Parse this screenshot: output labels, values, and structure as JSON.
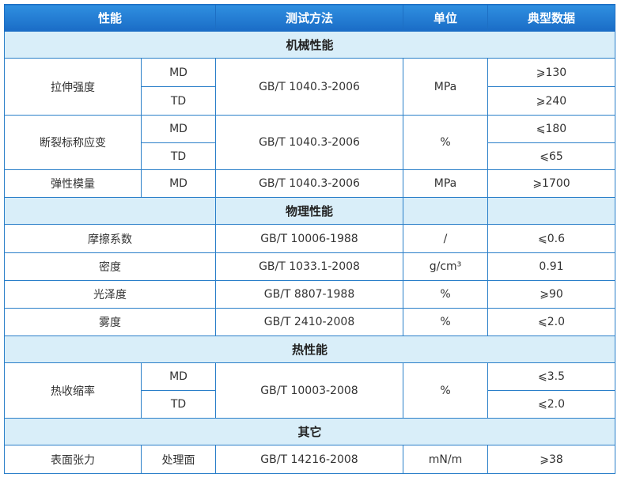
{
  "header": [
    "性能",
    "测试方法",
    "单位",
    "典型数据"
  ],
  "sections": {
    "mechanical": "机械性能",
    "physical": "物理性能",
    "thermal": "热性能",
    "other": "其它"
  },
  "rows": {
    "tensile": {
      "name": "拉伸强度",
      "dir1": "MD",
      "dir2": "TD",
      "method": "GB/T 1040.3-2006",
      "unit": "MPa",
      "v1": "⩾130",
      "v2": "⩾240"
    },
    "elongation": {
      "name": "断裂标称应变",
      "dir1": "MD",
      "dir2": "TD",
      "method": "GB/T 1040.3-2006",
      "unit": "%",
      "v1": "⩽180",
      "v2": "⩽65"
    },
    "modulus": {
      "name": "弹性模量",
      "dir": "MD",
      "method": "GB/T 1040.3-2006",
      "unit": "MPa",
      "value": "⩾1700"
    },
    "friction": {
      "name": "摩擦系数",
      "method": "GB/T 10006-1988",
      "unit": "/",
      "value": "⩽0.6"
    },
    "density": {
      "name": "密度",
      "method": "GB/T 1033.1-2008",
      "unit": "g/cm³",
      "value": "0.91"
    },
    "gloss": {
      "name": "光泽度",
      "method": "GB/T 8807-1988",
      "unit": "%",
      "value": "⩾90"
    },
    "haze": {
      "name": "雾度",
      "method": "GB/T 2410-2008",
      "unit": "%",
      "value": "⩽2.0"
    },
    "shrinkage": {
      "name": "热收缩率",
      "dir1": "MD",
      "dir2": "TD",
      "method": "GB/T 10003-2008",
      "unit": "%",
      "v1": "⩽3.5",
      "v2": "⩽2.0"
    },
    "tension": {
      "name": "表面张力",
      "dir": "处理面",
      "method": "GB/T 14216-2008",
      "unit": "mN/m",
      "value": "⩾38"
    }
  }
}
